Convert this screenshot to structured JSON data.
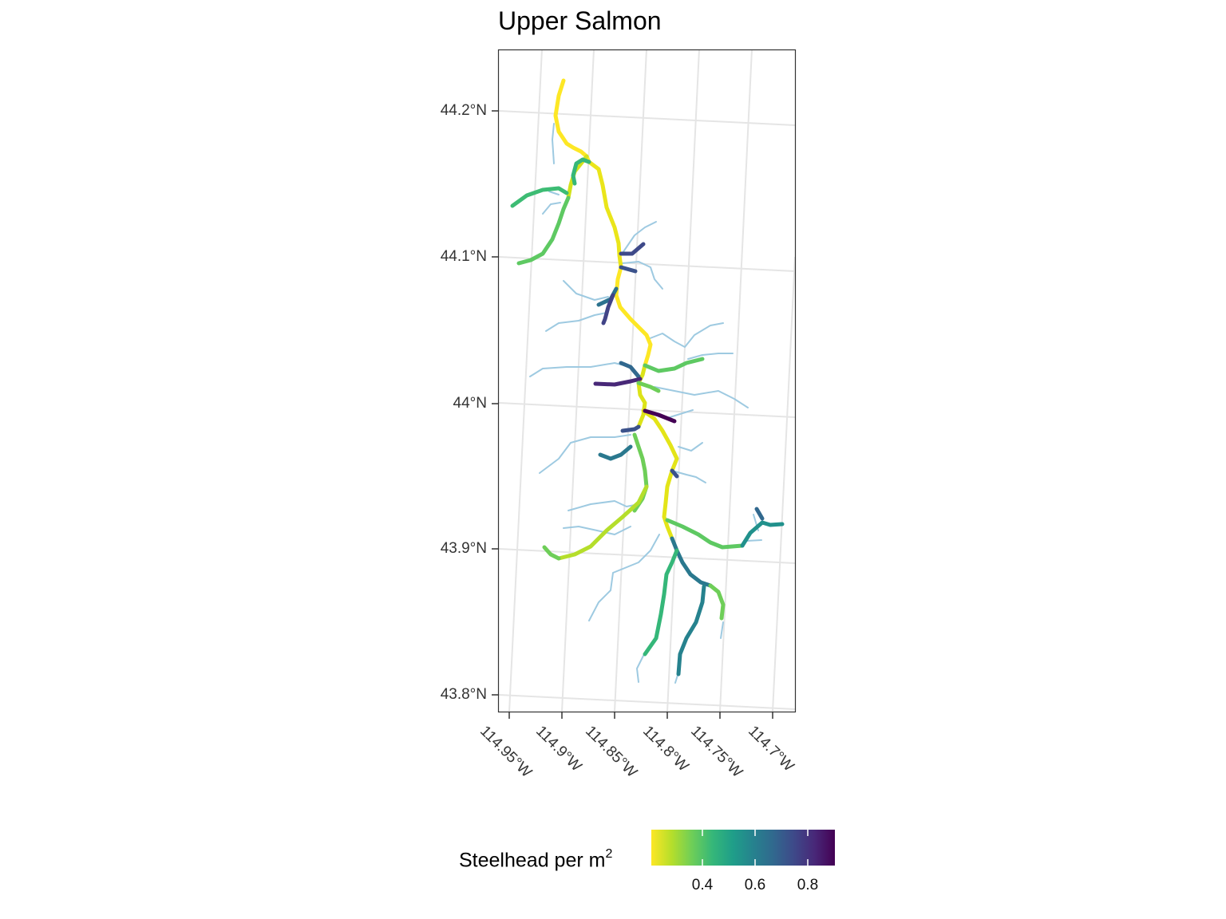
{
  "title": "Upper Salmon",
  "y_axis_labels": [
    "44.2°N",
    "44.1°N",
    "44°N",
    "43.9°N",
    "43.8°N"
  ],
  "x_axis_labels": [
    "114.95°W",
    "114.9°W",
    "114.85°W",
    "114.8°W",
    "114.75°W",
    "114.7°W"
  ],
  "legend": {
    "title": "Steelhead per m",
    "title_superscript": "2",
    "tick_labels": [
      "0.4",
      "0.6",
      "0.8"
    ],
    "colors": [
      "#fde725",
      "#b5de2b",
      "#6ece58",
      "#35b779",
      "#1f9e89",
      "#26828e",
      "#31688e",
      "#3e4989",
      "#482878",
      "#440154"
    ]
  },
  "colors": {
    "unmodeled_stream": "#9ecae1",
    "grid": "#e5e5e5",
    "panel_border": "#333333"
  }
}
